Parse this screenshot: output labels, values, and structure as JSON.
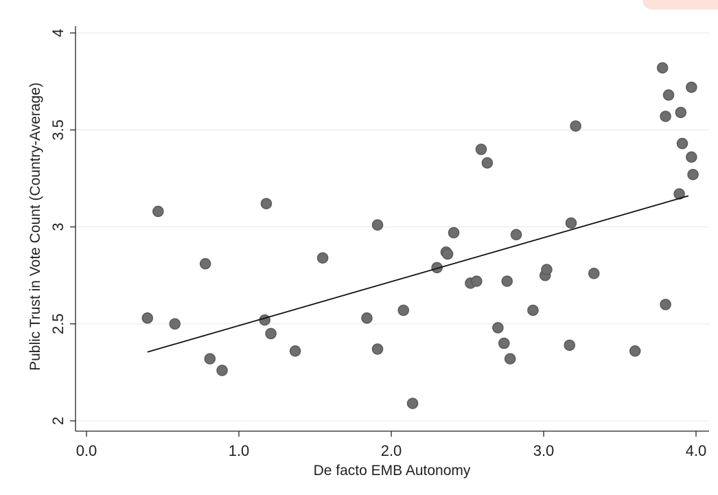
{
  "chart_data": {
    "type": "scatter",
    "xlabel": "De facto EMB Autonomy",
    "ylabel": "Public Trust in Vote Count (Country-Average)",
    "xlim": [
      0,
      4
    ],
    "ylim": [
      2,
      4
    ],
    "x_ticks": [
      "0.0",
      "1.0",
      "2.0",
      "3.0",
      "4.0"
    ],
    "y_ticks": [
      "2",
      "2.5",
      "3",
      "3.5",
      "4"
    ],
    "grid": true,
    "colors": {
      "points": "#6e6e6e",
      "fit_line": "#111111",
      "grid": "#e8ecee"
    },
    "points": [
      {
        "x": 0.4,
        "y": 2.53
      },
      {
        "x": 0.47,
        "y": 3.08
      },
      {
        "x": 0.58,
        "y": 2.5
      },
      {
        "x": 0.78,
        "y": 2.81
      },
      {
        "x": 0.81,
        "y": 2.32
      },
      {
        "x": 0.89,
        "y": 2.26
      },
      {
        "x": 1.17,
        "y": 2.52
      },
      {
        "x": 1.18,
        "y": 3.12
      },
      {
        "x": 1.21,
        "y": 2.45
      },
      {
        "x": 1.37,
        "y": 2.36
      },
      {
        "x": 1.55,
        "y": 2.84
      },
      {
        "x": 1.84,
        "y": 2.53
      },
      {
        "x": 1.91,
        "y": 2.37
      },
      {
        "x": 1.91,
        "y": 3.01
      },
      {
        "x": 2.08,
        "y": 2.57
      },
      {
        "x": 2.14,
        "y": 2.09
      },
      {
        "x": 2.3,
        "y": 2.79
      },
      {
        "x": 2.36,
        "y": 2.87
      },
      {
        "x": 2.37,
        "y": 2.86
      },
      {
        "x": 2.41,
        "y": 2.97
      },
      {
        "x": 2.52,
        "y": 2.71
      },
      {
        "x": 2.56,
        "y": 2.72
      },
      {
        "x": 2.59,
        "y": 3.4
      },
      {
        "x": 2.63,
        "y": 3.33
      },
      {
        "x": 2.7,
        "y": 2.48
      },
      {
        "x": 2.74,
        "y": 2.4
      },
      {
        "x": 2.76,
        "y": 2.72
      },
      {
        "x": 2.78,
        "y": 2.32
      },
      {
        "x": 2.82,
        "y": 2.96
      },
      {
        "x": 2.93,
        "y": 2.57
      },
      {
        "x": 3.01,
        "y": 2.75
      },
      {
        "x": 3.02,
        "y": 2.78
      },
      {
        "x": 3.17,
        "y": 2.39
      },
      {
        "x": 3.18,
        "y": 3.02
      },
      {
        "x": 3.21,
        "y": 3.52
      },
      {
        "x": 3.33,
        "y": 2.76
      },
      {
        "x": 3.6,
        "y": 2.36
      },
      {
        "x": 3.78,
        "y": 3.82
      },
      {
        "x": 3.8,
        "y": 3.57
      },
      {
        "x": 3.8,
        "y": 2.6
      },
      {
        "x": 3.82,
        "y": 3.68
      },
      {
        "x": 3.89,
        "y": 3.17
      },
      {
        "x": 3.9,
        "y": 3.59
      },
      {
        "x": 3.91,
        "y": 3.43
      },
      {
        "x": 3.97,
        "y": 3.72
      },
      {
        "x": 3.97,
        "y": 3.36
      },
      {
        "x": 3.98,
        "y": 3.27
      }
    ],
    "fit_line": {
      "x": [
        0.4,
        3.95
      ],
      "y": [
        2.355,
        3.16
      ]
    }
  }
}
